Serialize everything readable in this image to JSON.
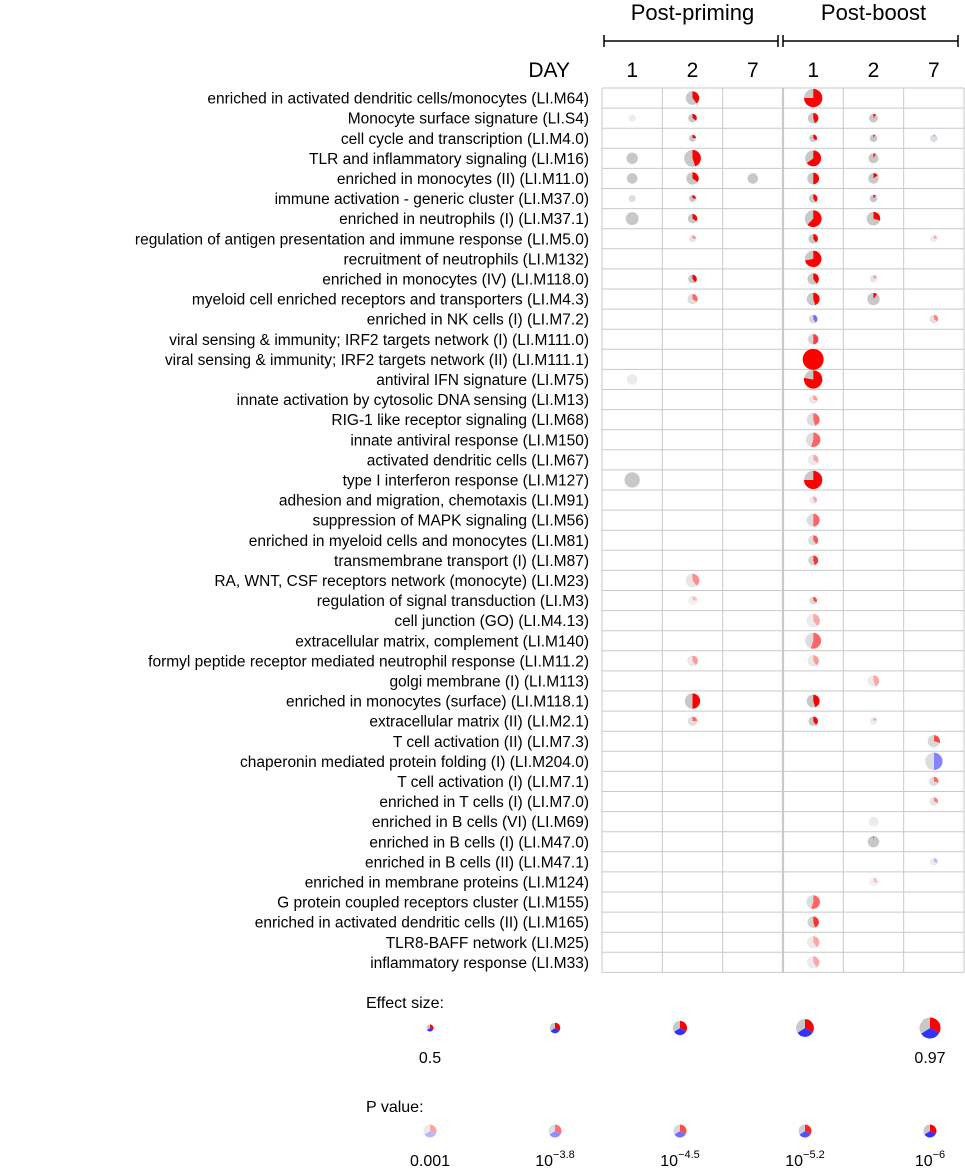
{
  "chart_data": {
    "type": "pie-matrix",
    "title": "",
    "groups": [
      {
        "label": "Post-priming",
        "days": [
          "1",
          "2",
          "7"
        ]
      },
      {
        "label": "Post-boost",
        "days": [
          "1",
          "2",
          "7"
        ]
      }
    ],
    "day_header": "DAY",
    "columns": [
      {
        "group": "Post-priming",
        "day": "1"
      },
      {
        "group": "Post-priming",
        "day": "2"
      },
      {
        "group": "Post-priming",
        "day": "7"
      },
      {
        "group": "Post-boost",
        "day": "1"
      },
      {
        "group": "Post-boost",
        "day": "2"
      },
      {
        "group": "Post-boost",
        "day": "7"
      }
    ],
    "colors": {
      "up": "#ff0000",
      "down": "#3333ff",
      "neutral": "#c8c8c8",
      "grid": "#c9c9c9"
    },
    "modules": [
      "enriched in activated dendritic cells/monocytes (LI.M64)",
      "Monocyte surface signature (LI.S4)",
      "cell cycle and transcription (LI.M4.0)",
      "TLR and inflammatory signaling (LI.M16)",
      "enriched in monocytes (II) (LI.M11.0)",
      "immune activation - generic cluster (LI.M37.0)",
      "enriched in neutrophils (I) (LI.M37.1)",
      "regulation of antigen presentation and immune response (LI.M5.0)",
      "recruitment of neutrophils (LI.M132)",
      "enriched in monocytes (IV) (LI.M118.0)",
      "myeloid cell enriched receptors and transporters (LI.M4.3)",
      "enriched in NK cells (I) (LI.M7.2)",
      "viral sensing & immunity; IRF2 targets network (I) (LI.M111.0)",
      "viral sensing & immunity; IRF2 targets network (II) (LI.M111.1)",
      "antiviral IFN signature (LI.M75)",
      "innate activation by cytosolic DNA sensing (LI.M13)",
      "RIG-1 like receptor signaling (LI.M68)",
      "innate antiviral response (LI.M150)",
      "activated dendritic cells (LI.M67)",
      "type I interferon response (LI.M127)",
      "adhesion and migration, chemotaxis (LI.M91)",
      "suppression of MAPK signaling (LI.M56)",
      "enriched in myeloid cells and monocytes (LI.M81)",
      "transmembrane transport (I) (LI.M87)",
      "RA, WNT, CSF receptors network (monocyte) (LI.M23)",
      "regulation of signal transduction (LI.M3)",
      "cell junction (GO) (LI.M4.13)",
      "extracellular matrix, complement (LI.M140)",
      "formyl peptide receptor mediated neutrophil response (LI.M11.2)",
      "golgi membrane (I) (LI.M113)",
      "enriched in monocytes (surface) (LI.M118.1)",
      "extracellular matrix (II) (LI.M2.1)",
      "T cell activation (II) (LI.M7.3)",
      "chaperonin mediated protein folding (I) (LI.M204.0)",
      "T cell activation (I) (LI.M7.1)",
      "enriched in T cells (I) (LI.M7.0)",
      "enriched in B cells (VI) (LI.M69)",
      "enriched in B cells (I) (LI.M47.0)",
      "enriched in B cells (II) (LI.M47.1)",
      "enriched in membrane proteins (LI.M124)",
      "G protein coupled receptors cluster (LI.M155)",
      "enriched in activated dendritic cells (II) (LI.M165)",
      "TLR8-BAFF network (LI.M25)",
      "inflammatory response (LI.M33)"
    ],
    "cells": [
      {
        "row": 0,
        "col": 1,
        "effect": 0.72,
        "up": 0.4,
        "down": 0,
        "alpha": 1.0
      },
      {
        "row": 0,
        "col": 3,
        "effect": 0.88,
        "up": 0.75,
        "down": 0,
        "alpha": 1.0
      },
      {
        "row": 1,
        "col": 0,
        "effect": 0.5,
        "up": 0,
        "down": 0,
        "alpha": 0.35
      },
      {
        "row": 1,
        "col": 1,
        "effect": 0.55,
        "up": 0.35,
        "down": 0,
        "alpha": 1.0
      },
      {
        "row": 1,
        "col": 3,
        "effect": 0.62,
        "up": 0.45,
        "down": 0,
        "alpha": 1.0
      },
      {
        "row": 1,
        "col": 4,
        "effect": 0.56,
        "up": 0.1,
        "down": 0,
        "alpha": 1.0
      },
      {
        "row": 2,
        "col": 1,
        "effect": 0.5,
        "up": 0.25,
        "down": 0,
        "alpha": 1.0
      },
      {
        "row": 2,
        "col": 3,
        "effect": 0.52,
        "up": 0.35,
        "down": 0,
        "alpha": 1.0
      },
      {
        "row": 2,
        "col": 4,
        "effect": 0.52,
        "up": 0.08,
        "down": 0,
        "alpha": 1.0
      },
      {
        "row": 2,
        "col": 5,
        "effect": 0.52,
        "up": 0,
        "down": 0.06,
        "alpha": 0.6
      },
      {
        "row": 3,
        "col": 0,
        "effect": 0.65,
        "up": 0,
        "down": 0,
        "alpha": 1.0
      },
      {
        "row": 3,
        "col": 1,
        "effect": 0.83,
        "up": 0.45,
        "down": 0,
        "alpha": 1.0
      },
      {
        "row": 3,
        "col": 3,
        "effect": 0.8,
        "up": 0.65,
        "down": 0,
        "alpha": 1.0
      },
      {
        "row": 3,
        "col": 4,
        "effect": 0.6,
        "up": 0.08,
        "down": 0,
        "alpha": 1.0
      },
      {
        "row": 4,
        "col": 0,
        "effect": 0.62,
        "up": 0,
        "down": 0,
        "alpha": 1.0
      },
      {
        "row": 4,
        "col": 1,
        "effect": 0.68,
        "up": 0.35,
        "down": 0,
        "alpha": 1.0
      },
      {
        "row": 4,
        "col": 2,
        "effect": 0.62,
        "up": 0,
        "down": 0,
        "alpha": 1.0
      },
      {
        "row": 4,
        "col": 3,
        "effect": 0.66,
        "up": 0.5,
        "down": 0,
        "alpha": 1.0
      },
      {
        "row": 4,
        "col": 4,
        "effect": 0.62,
        "up": 0.15,
        "down": 0,
        "alpha": 1.0
      },
      {
        "row": 5,
        "col": 0,
        "effect": 0.5,
        "up": 0,
        "down": 0,
        "alpha": 0.6
      },
      {
        "row": 5,
        "col": 1,
        "effect": 0.5,
        "up": 0.25,
        "down": 0,
        "alpha": 1.0
      },
      {
        "row": 5,
        "col": 3,
        "effect": 0.55,
        "up": 0.4,
        "down": 0,
        "alpha": 1.0
      },
      {
        "row": 5,
        "col": 4,
        "effect": 0.52,
        "up": 0.12,
        "down": 0,
        "alpha": 1.0
      },
      {
        "row": 6,
        "col": 0,
        "effect": 0.7,
        "up": 0,
        "down": 0,
        "alpha": 1.0
      },
      {
        "row": 6,
        "col": 1,
        "effect": 0.58,
        "up": 0.35,
        "down": 0,
        "alpha": 1.0
      },
      {
        "row": 6,
        "col": 3,
        "effect": 0.83,
        "up": 0.62,
        "down": 0,
        "alpha": 1.0
      },
      {
        "row": 6,
        "col": 4,
        "effect": 0.72,
        "up": 0.3,
        "down": 0,
        "alpha": 1.0
      },
      {
        "row": 7,
        "col": 1,
        "effect": 0.5,
        "up": 0.25,
        "down": 0,
        "alpha": 0.45
      },
      {
        "row": 7,
        "col": 3,
        "effect": 0.58,
        "up": 0.4,
        "down": 0,
        "alpha": 1.0
      },
      {
        "row": 7,
        "col": 5,
        "effect": 0.5,
        "up": 0.22,
        "down": 0,
        "alpha": 0.35
      },
      {
        "row": 8,
        "col": 3,
        "effect": 0.82,
        "up": 0.72,
        "down": 0,
        "alpha": 1.0
      },
      {
        "row": 9,
        "col": 1,
        "effect": 0.55,
        "up": 0.4,
        "down": 0,
        "alpha": 1.0
      },
      {
        "row": 9,
        "col": 3,
        "effect": 0.65,
        "up": 0.4,
        "down": 0,
        "alpha": 1.0
      },
      {
        "row": 9,
        "col": 4,
        "effect": 0.52,
        "up": 0.2,
        "down": 0,
        "alpha": 0.4
      },
      {
        "row": 10,
        "col": 1,
        "effect": 0.6,
        "up": 0.35,
        "down": 0,
        "alpha": 0.6
      },
      {
        "row": 10,
        "col": 3,
        "effect": 0.7,
        "up": 0.45,
        "down": 0,
        "alpha": 1.0
      },
      {
        "row": 10,
        "col": 4,
        "effect": 0.68,
        "up": 0.1,
        "down": 0,
        "alpha": 1.0
      },
      {
        "row": 11,
        "col": 3,
        "effect": 0.55,
        "up": 0,
        "down": 0.4,
        "alpha": 0.7
      },
      {
        "row": 11,
        "col": 5,
        "effect": 0.55,
        "up": 0.35,
        "down": 0,
        "alpha": 0.5
      },
      {
        "row": 12,
        "col": 3,
        "effect": 0.62,
        "up": 0.5,
        "down": 0,
        "alpha": 0.75
      },
      {
        "row": 13,
        "col": 3,
        "effect": 0.97,
        "up": 1.0,
        "down": 0,
        "alpha": 1.0
      },
      {
        "row": 14,
        "col": 0,
        "effect": 0.62,
        "up": 0,
        "down": 0,
        "alpha": 0.35
      },
      {
        "row": 14,
        "col": 3,
        "effect": 0.88,
        "up": 0.78,
        "down": 0,
        "alpha": 1.0
      },
      {
        "row": 15,
        "col": 3,
        "effect": 0.55,
        "up": 0.3,
        "down": 0,
        "alpha": 0.4
      },
      {
        "row": 16,
        "col": 3,
        "effect": 0.7,
        "up": 0.45,
        "down": 0,
        "alpha": 0.6
      },
      {
        "row": 17,
        "col": 3,
        "effect": 0.75,
        "up": 0.55,
        "down": 0,
        "alpha": 0.6
      },
      {
        "row": 18,
        "col": 3,
        "effect": 0.62,
        "up": 0.35,
        "down": 0,
        "alpha": 0.35
      },
      {
        "row": 19,
        "col": 0,
        "effect": 0.78,
        "up": 0,
        "down": 0,
        "alpha": 1.0
      },
      {
        "row": 19,
        "col": 3,
        "effect": 0.88,
        "up": 0.75,
        "down": 0,
        "alpha": 1.0
      },
      {
        "row": 20,
        "col": 3,
        "effect": 0.52,
        "up": 0.3,
        "down": 0.1,
        "alpha": 0.35
      },
      {
        "row": 21,
        "col": 3,
        "effect": 0.7,
        "up": 0.5,
        "down": 0,
        "alpha": 0.6
      },
      {
        "row": 22,
        "col": 3,
        "effect": 0.6,
        "up": 0.4,
        "down": 0,
        "alpha": 0.65
      },
      {
        "row": 23,
        "col": 3,
        "effect": 0.6,
        "up": 0.45,
        "down": 0,
        "alpha": 0.8
      },
      {
        "row": 24,
        "col": 1,
        "effect": 0.72,
        "up": 0.4,
        "down": 0,
        "alpha": 0.45
      },
      {
        "row": 25,
        "col": 1,
        "effect": 0.58,
        "up": 0.25,
        "down": 0,
        "alpha": 0.25
      },
      {
        "row": 25,
        "col": 3,
        "effect": 0.52,
        "up": 0.35,
        "down": 0,
        "alpha": 0.7
      },
      {
        "row": 26,
        "col": 3,
        "effect": 0.72,
        "up": 0.4,
        "down": 0,
        "alpha": 0.35
      },
      {
        "row": 27,
        "col": 3,
        "effect": 0.8,
        "up": 0.55,
        "down": 0,
        "alpha": 0.6
      },
      {
        "row": 28,
        "col": 1,
        "effect": 0.62,
        "up": 0.4,
        "down": 0,
        "alpha": 0.4
      },
      {
        "row": 28,
        "col": 3,
        "effect": 0.65,
        "up": 0.4,
        "down": 0,
        "alpha": 0.4
      },
      {
        "row": 29,
        "col": 4,
        "effect": 0.65,
        "up": 0.45,
        "down": 0,
        "alpha": 0.35
      },
      {
        "row": 30,
        "col": 1,
        "effect": 0.78,
        "up": 0.5,
        "down": 0,
        "alpha": 1.0
      },
      {
        "row": 30,
        "col": 3,
        "effect": 0.7,
        "up": 0.45,
        "down": 0,
        "alpha": 1.0
      },
      {
        "row": 31,
        "col": 1,
        "effect": 0.58,
        "up": 0.25,
        "down": 0,
        "alpha": 0.6
      },
      {
        "row": 31,
        "col": 3,
        "effect": 0.58,
        "up": 0.4,
        "down": 0,
        "alpha": 1.0
      },
      {
        "row": 31,
        "col": 4,
        "effect": 0.5,
        "up": 0.2,
        "down": 0,
        "alpha": 0.35
      },
      {
        "row": 32,
        "col": 5,
        "effect": 0.68,
        "up": 0.3,
        "down": 0,
        "alpha": 0.7
      },
      {
        "row": 33,
        "col": 5,
        "effect": 0.85,
        "up": 0,
        "down": 0.5,
        "alpha": 0.6
      },
      {
        "row": 34,
        "col": 5,
        "effect": 0.58,
        "up": 0.3,
        "down": 0,
        "alpha": 0.6
      },
      {
        "row": 35,
        "col": 5,
        "effect": 0.55,
        "up": 0.3,
        "down": 0,
        "alpha": 0.5
      },
      {
        "row": 36,
        "col": 4,
        "effect": 0.6,
        "up": 0,
        "down": 0,
        "alpha": 0.35
      },
      {
        "row": 37,
        "col": 4,
        "effect": 0.65,
        "up": 0,
        "down": 0.02,
        "alpha": 1.0
      },
      {
        "row": 38,
        "col": 5,
        "effect": 0.52,
        "up": 0,
        "down": 0.3,
        "alpha": 0.35
      },
      {
        "row": 39,
        "col": 4,
        "effect": 0.55,
        "up": 0.3,
        "down": 0,
        "alpha": 0.25
      },
      {
        "row": 40,
        "col": 3,
        "effect": 0.72,
        "up": 0.55,
        "down": 0,
        "alpha": 0.6
      },
      {
        "row": 41,
        "col": 3,
        "effect": 0.65,
        "up": 0.45,
        "down": 0,
        "alpha": 0.8
      },
      {
        "row": 42,
        "col": 3,
        "effect": 0.68,
        "up": 0.4,
        "down": 0,
        "alpha": 0.35
      },
      {
        "row": 43,
        "col": 3,
        "effect": 0.68,
        "up": 0.4,
        "down": 0,
        "alpha": 0.35
      }
    ],
    "legend": {
      "effect_title": "Effect size:",
      "effect_steps": [
        0.5,
        0.62,
        0.74,
        0.86,
        0.97
      ],
      "effect_min_label": "0.5",
      "effect_max_label": "0.97",
      "p_title": "P value:",
      "p_steps": [
        {
          "alpha": 0.35,
          "base": "0.001",
          "exp": ""
        },
        {
          "alpha": 0.55,
          "base": "10",
          "exp": "−3.8"
        },
        {
          "alpha": 0.7,
          "base": "10",
          "exp": "−4.5"
        },
        {
          "alpha": 0.85,
          "base": "10",
          "exp": "−5.2"
        },
        {
          "alpha": 1.0,
          "base": "10",
          "exp": "−6"
        }
      ]
    }
  }
}
